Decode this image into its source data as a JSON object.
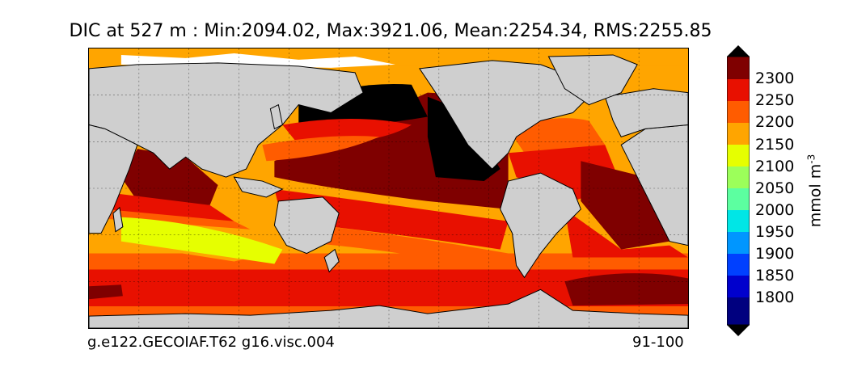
{
  "title": "DIC at 527 m : Min:2094.02, Max:3921.06, Mean:2254.34, RMS:2255.85",
  "footer": {
    "run_name": "g.e122.GECOIAF.T62 g16.visc.004",
    "years": "91-100"
  },
  "colorbar": {
    "unit_label": "mmol m",
    "unit_exponent": "-3",
    "ticks": [
      "2300",
      "2250",
      "2200",
      "2150",
      "2100",
      "2050",
      "2000",
      "1950",
      "1900",
      "1850",
      "1800"
    ],
    "colors": {
      "over": "#000000",
      "c2300": "#7f0000",
      "c2250": "#e81000",
      "c2200": "#ff5c00",
      "c2150": "#ffa500",
      "c2100": "#e6ff00",
      "c2050": "#9cff5a",
      "c2000": "#5cffa0",
      "c1950": "#00e6e6",
      "c1900": "#0096ff",
      "c1850": "#0040ff",
      "c1800": "#0000cd",
      "under": "#00007f",
      "land": "#cfcfcf",
      "ice": "#ffffff"
    }
  }
}
